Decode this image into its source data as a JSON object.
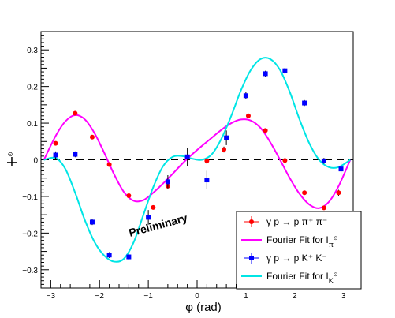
{
  "chart_data": {
    "type": "scatter",
    "xlabel": "φ (rad)",
    "ylabel": "I",
    "xlim": [
      -3.2,
      3.2
    ],
    "ylim": [
      -0.35,
      0.35
    ],
    "x_ticks": [
      -3,
      -2,
      -1,
      0,
      1,
      2,
      3
    ],
    "y_ticks": [
      -0.3,
      -0.2,
      -0.1,
      0,
      0.1,
      0.2,
      0.3
    ],
    "x_tick_labels": [
      "−3",
      "−2",
      "−1",
      "0",
      "1",
      "2",
      "3"
    ],
    "y_tick_labels": [
      "−0.3",
      "−0.2",
      "−0.1",
      "0",
      "0.1",
      "0.2",
      "0.3"
    ],
    "annotation": "Preliminary",
    "legend_position": "bottom-right",
    "series": [
      {
        "name": "γ p → p π⁺ π⁻",
        "kind": "points",
        "color": "#ff0000",
        "marker": "circle",
        "x": [
          -2.9,
          -2.5,
          -2.15,
          -1.8,
          -1.4,
          -0.9,
          -0.6,
          0.2,
          0.55,
          1.05,
          1.4,
          1.8,
          2.2,
          2.6,
          2.9
        ],
        "y": [
          0.045,
          0.127,
          0.062,
          -0.013,
          -0.098,
          -0.13,
          -0.072,
          -0.003,
          0.028,
          0.12,
          0.08,
          -0.002,
          -0.09,
          -0.131,
          -0.09
        ],
        "err": [
          0.005,
          0.005,
          0.005,
          0.005,
          0.005,
          0.005,
          0.005,
          0.008,
          0.008,
          0.005,
          0.005,
          0.005,
          0.005,
          0.005,
          0.008
        ]
      },
      {
        "name": "Fourier Fit for I",
        "label_sub": "π",
        "kind": "curve",
        "color": "#ff00ff",
        "x": [
          -3.14,
          -2.9,
          -2.7,
          -2.5,
          -2.3,
          -2.1,
          -1.9,
          -1.7,
          -1.5,
          -1.3,
          -1.1,
          -0.9,
          -0.7,
          -0.5,
          -0.3,
          -0.1,
          0.1,
          0.3,
          0.5,
          0.7,
          0.9,
          1.1,
          1.3,
          1.5,
          1.7,
          1.9,
          2.1,
          2.3,
          2.5,
          2.7,
          2.9,
          3.14
        ],
        "y": [
          0.0,
          0.065,
          0.105,
          0.122,
          0.11,
          0.072,
          0.018,
          -0.04,
          -0.088,
          -0.112,
          -0.11,
          -0.09,
          -0.065,
          -0.038,
          -0.01,
          0.015,
          0.038,
          0.06,
          0.082,
          0.1,
          0.11,
          0.107,
          0.087,
          0.048,
          0.0,
          -0.05,
          -0.093,
          -0.122,
          -0.132,
          -0.115,
          -0.072,
          0.0
        ]
      },
      {
        "name": "γ p → p K⁺ K⁻",
        "kind": "points",
        "color": "#0000ff",
        "marker": "square",
        "x": [
          -2.9,
          -2.5,
          -2.15,
          -1.8,
          -1.4,
          -1.0,
          -0.6,
          -0.2,
          0.2,
          0.6,
          1.0,
          1.4,
          1.8,
          2.2,
          2.6,
          2.95
        ],
        "y": [
          0.013,
          0.015,
          -0.17,
          -0.26,
          -0.265,
          -0.157,
          -0.06,
          0.008,
          -0.055,
          0.06,
          0.175,
          0.235,
          0.243,
          0.155,
          -0.003,
          -0.025
        ],
        "err": [
          0.01,
          0.008,
          0.008,
          0.008,
          0.008,
          0.02,
          0.018,
          0.025,
          0.025,
          0.02,
          0.01,
          0.008,
          0.008,
          0.008,
          0.008,
          0.02
        ]
      },
      {
        "name": "Fourier Fit for I",
        "label_sub": "K",
        "kind": "curve",
        "color": "#00e5e5",
        "x": [
          -3.14,
          -2.9,
          -2.7,
          -2.5,
          -2.3,
          -2.1,
          -1.9,
          -1.7,
          -1.5,
          -1.3,
          -1.1,
          -0.9,
          -0.7,
          -0.5,
          -0.3,
          -0.1,
          0.1,
          0.3,
          0.5,
          0.7,
          0.9,
          1.1,
          1.3,
          1.5,
          1.7,
          1.9,
          2.1,
          2.3,
          2.5,
          2.7,
          2.9,
          3.14
        ],
        "y": [
          0.0,
          0.005,
          -0.025,
          -0.09,
          -0.165,
          -0.225,
          -0.262,
          -0.278,
          -0.27,
          -0.225,
          -0.15,
          -0.075,
          -0.018,
          0.008,
          0.01,
          0.003,
          0.0,
          0.015,
          0.058,
          0.12,
          0.19,
          0.245,
          0.275,
          0.275,
          0.245,
          0.185,
          0.11,
          0.045,
          0.0,
          -0.02,
          -0.02,
          0.0
        ]
      }
    ]
  }
}
